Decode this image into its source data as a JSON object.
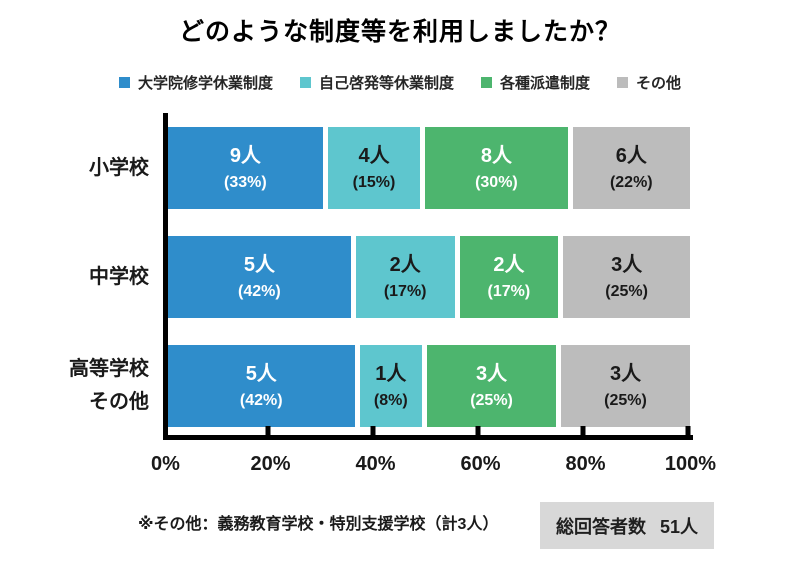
{
  "title": "どのような制度等を利用しましたか？",
  "footnote": "※その他：義務教育学校・特別支援学校（計3人）",
  "badge": {
    "label": "総回答者数",
    "value": "51人"
  },
  "colors": {
    "blue": "#2f8dcb",
    "teal": "#5ec6ce",
    "green": "#4db56e",
    "gray": "#bcbcbc",
    "badge_bg": "#d8d8d8",
    "axis": "#000000",
    "text_on_dark": "#ffffff",
    "text_on_light": "#1a1a1a"
  },
  "legend": [
    {
      "label": "大学院修学休業制度",
      "color": "#2f8dcb"
    },
    {
      "label": "自己啓発等休業制度",
      "color": "#5ec6ce"
    },
    {
      "label": "各種派遣制度",
      "color": "#4db56e"
    },
    {
      "label": "その他",
      "color": "#bcbcbc"
    }
  ],
  "chart_data": {
    "type": "bar",
    "stacked": true,
    "orientation": "horizontal",
    "unit": "人",
    "title": "どのような制度等を利用しましたか？",
    "categories": [
      "小学校",
      "中学校",
      "高等学校\nその他"
    ],
    "series": [
      {
        "name": "大学院修学休業制度",
        "color": "#2f8dcb",
        "values": [
          9,
          5,
          5
        ],
        "percents": [
          33,
          42,
          42
        ]
      },
      {
        "name": "自己啓発等休業制度",
        "color": "#5ec6ce",
        "values": [
          4,
          2,
          1
        ],
        "percents": [
          15,
          17,
          8
        ]
      },
      {
        "name": "各種派遣制度",
        "color": "#4db56e",
        "values": [
          8,
          2,
          3
        ],
        "percents": [
          30,
          17,
          25
        ]
      },
      {
        "name": "その他",
        "color": "#bcbcbc",
        "values": [
          6,
          3,
          3
        ],
        "percents": [
          22,
          25,
          25
        ]
      }
    ],
    "x_ticks": [
      "0%",
      "20%",
      "40%",
      "60%",
      "80%",
      "100%"
    ],
    "xlim": [
      0,
      100
    ],
    "grid": false,
    "legend_position": "top",
    "total_respondents": 51,
    "rows": [
      {
        "label": "小学校",
        "segments": [
          {
            "count": 9,
            "count_label": "9人",
            "pct_label": "(33%)",
            "color": "#2f8dcb",
            "text_color": "#ffffff"
          },
          {
            "count": 4,
            "count_label": "4人",
            "pct_label": "(15%)",
            "color": "#5ec6ce",
            "text_color": "#1a1a1a"
          },
          {
            "count": 8,
            "count_label": "8人",
            "pct_label": "(30%)",
            "color": "#4db56e",
            "text_color": "#ffffff"
          },
          {
            "count": 6,
            "count_label": "6人",
            "pct_label": "(22%)",
            "color": "#bcbcbc",
            "text_color": "#1a1a1a"
          }
        ]
      },
      {
        "label": "中学校",
        "segments": [
          {
            "count": 5,
            "count_label": "5人",
            "pct_label": "(42%)",
            "color": "#2f8dcb",
            "text_color": "#ffffff"
          },
          {
            "count": 2,
            "count_label": "2人",
            "pct_label": "(17%)",
            "color": "#5ec6ce",
            "text_color": "#1a1a1a"
          },
          {
            "count": 2,
            "count_label": "2人",
            "pct_label": "(17%)",
            "color": "#4db56e",
            "text_color": "#ffffff"
          },
          {
            "count": 3,
            "count_label": "3人",
            "pct_label": "(25%)",
            "color": "#bcbcbc",
            "text_color": "#1a1a1a"
          }
        ]
      },
      {
        "label": "高等学校\nその他",
        "segments": [
          {
            "count": 5,
            "count_label": "5人",
            "pct_label": "(42%)",
            "color": "#2f8dcb",
            "text_color": "#ffffff"
          },
          {
            "count": 1,
            "count_label": "1人",
            "pct_label": "(8%)",
            "color": "#5ec6ce",
            "text_color": "#1a1a1a"
          },
          {
            "count": 3,
            "count_label": "3人",
            "pct_label": "(25%)",
            "color": "#4db56e",
            "text_color": "#ffffff"
          },
          {
            "count": 3,
            "count_label": "3人",
            "pct_label": "(25%)",
            "color": "#bcbcbc",
            "text_color": "#1a1a1a"
          }
        ]
      }
    ]
  }
}
